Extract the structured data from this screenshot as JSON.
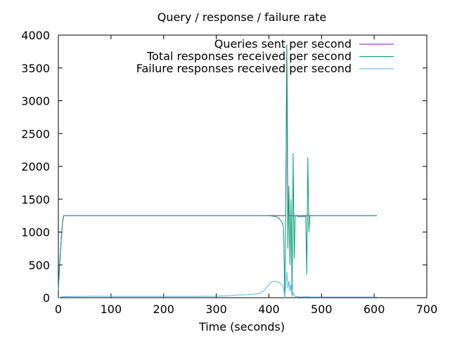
{
  "chart_data": {
    "type": "line",
    "title": "Query / response / failure rate",
    "xlabel": "Time (seconds)",
    "ylabel": "",
    "xlim": [
      0,
      700
    ],
    "ylim": [
      0,
      4000
    ],
    "x_ticks": [
      0,
      100,
      200,
      300,
      400,
      500,
      600,
      700
    ],
    "y_ticks": [
      0,
      500,
      1000,
      1500,
      2000,
      2500,
      3000,
      3500,
      4000
    ],
    "grid": false,
    "legend_position": "top-right",
    "series": [
      {
        "name": "Queries sent per second",
        "color": "#9400d3",
        "points": [
          [
            0,
            120
          ],
          [
            2,
            450
          ],
          [
            4,
            700
          ],
          [
            6,
            950
          ],
          [
            8,
            1150
          ],
          [
            10,
            1250
          ],
          [
            50,
            1250
          ],
          [
            100,
            1250
          ],
          [
            150,
            1250
          ],
          [
            200,
            1250
          ],
          [
            250,
            1250
          ],
          [
            300,
            1250
          ],
          [
            350,
            1250
          ],
          [
            400,
            1250
          ],
          [
            420,
            1250
          ],
          [
            425,
            1250
          ],
          [
            428,
            1250
          ],
          [
            430,
            1250
          ],
          [
            432,
            1250
          ],
          [
            434,
            3850
          ],
          [
            436,
            1250
          ],
          [
            438,
            1250
          ],
          [
            440,
            1250
          ],
          [
            442,
            1250
          ],
          [
            444,
            1250
          ],
          [
            446,
            1250
          ],
          [
            448,
            1250
          ],
          [
            450,
            1250
          ],
          [
            460,
            1250
          ],
          [
            465,
            1250
          ],
          [
            470,
            1250
          ],
          [
            472,
            1250
          ],
          [
            474,
            1250
          ],
          [
            476,
            1250
          ],
          [
            480,
            1250
          ],
          [
            500,
            1250
          ],
          [
            550,
            1250
          ],
          [
            600,
            1250
          ],
          [
            605,
            1250
          ]
        ]
      },
      {
        "name": "Total responses received per second",
        "color": "#009e73",
        "points": [
          [
            0,
            120
          ],
          [
            2,
            450
          ],
          [
            4,
            700
          ],
          [
            6,
            950
          ],
          [
            8,
            1150
          ],
          [
            10,
            1250
          ],
          [
            50,
            1250
          ],
          [
            100,
            1250
          ],
          [
            150,
            1250
          ],
          [
            200,
            1250
          ],
          [
            250,
            1250
          ],
          [
            300,
            1250
          ],
          [
            350,
            1250
          ],
          [
            400,
            1250
          ],
          [
            410,
            1240
          ],
          [
            415,
            1230
          ],
          [
            420,
            1200
          ],
          [
            425,
            1150
          ],
          [
            428,
            1050
          ],
          [
            430,
            0
          ],
          [
            432,
            1250
          ],
          [
            434,
            3850
          ],
          [
            436,
            750
          ],
          [
            438,
            1700
          ],
          [
            440,
            500
          ],
          [
            442,
            1500
          ],
          [
            444,
            50
          ],
          [
            446,
            2200
          ],
          [
            448,
            600
          ],
          [
            450,
            1250
          ],
          [
            460,
            1230
          ],
          [
            465,
            1240
          ],
          [
            470,
            1240
          ],
          [
            472,
            350
          ],
          [
            474,
            2130
          ],
          [
            476,
            1000
          ],
          [
            478,
            1250
          ],
          [
            480,
            1250
          ],
          [
            500,
            1250
          ],
          [
            550,
            1250
          ],
          [
            600,
            1250
          ],
          [
            605,
            1250
          ]
        ]
      },
      {
        "name": "Failure responses received per second",
        "color": "#56b4e9",
        "points": [
          [
            0,
            0
          ],
          [
            5,
            10
          ],
          [
            10,
            15
          ],
          [
            30,
            18
          ],
          [
            50,
            20
          ],
          [
            80,
            22
          ],
          [
            100,
            20
          ],
          [
            150,
            20
          ],
          [
            200,
            20
          ],
          [
            250,
            20
          ],
          [
            300,
            22
          ],
          [
            320,
            30
          ],
          [
            340,
            40
          ],
          [
            360,
            45
          ],
          [
            380,
            60
          ],
          [
            390,
            100
          ],
          [
            395,
            150
          ],
          [
            400,
            200
          ],
          [
            405,
            240
          ],
          [
            410,
            250
          ],
          [
            415,
            240
          ],
          [
            420,
            230
          ],
          [
            425,
            200
          ],
          [
            428,
            150
          ],
          [
            430,
            0
          ],
          [
            432,
            200
          ],
          [
            434,
            400
          ],
          [
            436,
            150
          ],
          [
            438,
            250
          ],
          [
            440,
            100
          ],
          [
            442,
            200
          ],
          [
            444,
            20
          ],
          [
            446,
            80
          ],
          [
            448,
            30
          ],
          [
            450,
            20
          ],
          [
            460,
            10
          ],
          [
            470,
            15
          ],
          [
            480,
            10
          ],
          [
            500,
            10
          ],
          [
            550,
            10
          ],
          [
            600,
            10
          ],
          [
            605,
            10
          ]
        ]
      }
    ]
  }
}
